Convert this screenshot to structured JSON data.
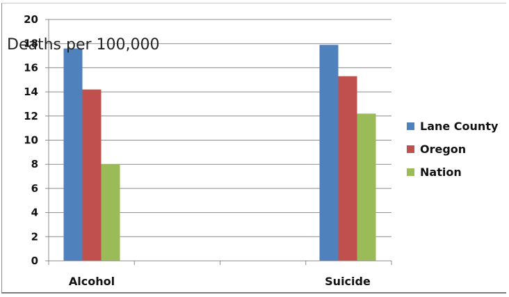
{
  "chart_data": {
    "type": "bar",
    "title": "",
    "ylabel": "Deaths per 100,000",
    "xlabel": "",
    "categories": [
      "Alcohol",
      "Suicide"
    ],
    "series": [
      {
        "name": "Lane County",
        "values": [
          17.6,
          17.9
        ],
        "color": "#4f81bd"
      },
      {
        "name": "Oregon",
        "values": [
          14.2,
          15.3
        ],
        "color": "#c0504d"
      },
      {
        "name": "Nation",
        "values": [
          8.0,
          12.2
        ],
        "color": "#9bbb59"
      }
    ],
    "ylim": [
      0,
      20
    ],
    "yticks": [
      "0",
      "2",
      "4",
      "6",
      "8",
      "10",
      "12",
      "14",
      "16",
      "18",
      "20"
    ],
    "grid": true,
    "legend_position": "right"
  }
}
